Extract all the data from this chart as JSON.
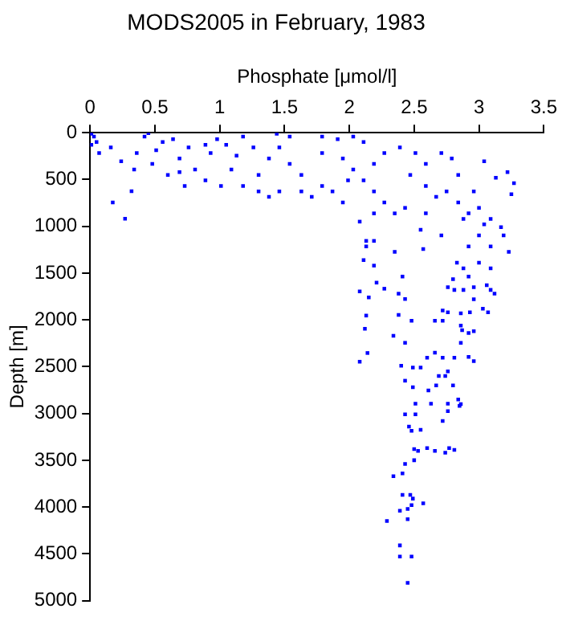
{
  "chart_data": {
    "type": "scatter",
    "title": "MODS2005 in February, 1983",
    "xlabel": "Phosphate [μmol/l]",
    "ylabel": "Depth [m]",
    "xlim": [
      0,
      3.5
    ],
    "xticks": [
      0,
      0.5,
      1,
      1.5,
      2,
      2.5,
      3,
      3.5
    ],
    "ylim": [
      5000,
      0
    ],
    "yticks": [
      0,
      500,
      1000,
      1500,
      2000,
      2500,
      3000,
      3500,
      4000,
      4500,
      5000
    ],
    "grid": false,
    "legend": false,
    "marker": "square",
    "series": [
      {
        "color": "#0000ff",
        "x": [
          2.08,
          2.15,
          2.13,
          2.12,
          2.14,
          2.08,
          2.21,
          2.27,
          2.38,
          2.43,
          2.38,
          2.34,
          2.43,
          2.4,
          2.43,
          2.49,
          2.49,
          2.55,
          2.6,
          2.66,
          2.72,
          2.67,
          2.61,
          2.63,
          2.51,
          2.43,
          2.51,
          2.46,
          2.48,
          2.55,
          2.72,
          2.76,
          2.84,
          2.85,
          2.76,
          2.86,
          2.5,
          2.53,
          2.6,
          2.66,
          2.74,
          2.77,
          2.81,
          2.5,
          2.43,
          2.34,
          2.41,
          2.41,
          2.47,
          2.49,
          2.57,
          2.48,
          2.45,
          2.39,
          2.45,
          2.29,
          2.39,
          2.39,
          2.48,
          2.45,
          2.76,
          2.81,
          2.88,
          2.96,
          3.06,
          3.09,
          3.12,
          2.96,
          3.03,
          3.07,
          2.93,
          2.86,
          2.76,
          2.72,
          2.72,
          2.66,
          2.48,
          2.86,
          2.87,
          2.92,
          2.96,
          2.86,
          2.92,
          2.96,
          2.81,
          2.76,
          2.69,
          2.74,
          2.8,
          0.175,
          0.27,
          0.32,
          0.03,
          0.16,
          0.07,
          0.36,
          0.56,
          0.69,
          0.48,
          0.34,
          0.24,
          0.01,
          0.64,
          0.6,
          0.69,
          0.81,
          0.89,
          1.01,
          0.73,
          1.09,
          0.93,
          1.05,
          1.18,
          1.26,
          1.13,
          1.38,
          1.46,
          1.3,
          1.18,
          1.3,
          1.38,
          1.54,
          1.63,
          1.46,
          1.71,
          1.79,
          1.87,
          1.99,
          1.95,
          1.63,
          1.44,
          1.54,
          1.79,
          1.91,
          2.03,
          2.11,
          1.79,
          1.95,
          2.03,
          2.11,
          2.19,
          2.27,
          2.35,
          2.19,
          2.27,
          2.39,
          2.51,
          2.59,
          2.47,
          2.59,
          2.67,
          2.75,
          2.84,
          2.92,
          3.0,
          3.04,
          3.22,
          3.27,
          3.25,
          3.13,
          2.71,
          2.79,
          2.84,
          2.96,
          3.04,
          3.09,
          3.17,
          3.0,
          2.92,
          3.09,
          3.19,
          3.23,
          3.0,
          2.88,
          3.09,
          2.83,
          2.57,
          2.35,
          2.13,
          2.13,
          2.11,
          2.19,
          2.41,
          2.19,
          2.08,
          2.8,
          2.92,
          2.59,
          2.43,
          2.19,
          2.55,
          2.71,
          2.88,
          0.01,
          0.05,
          0.42,
          0.51,
          0.76,
          0.89,
          0.98,
          0.45
        ],
        "values": [
          1696,
          1760,
          1954,
          2095,
          2354,
          2447,
          1602,
          1667,
          1720,
          1777,
          1947,
          2170,
          2245,
          2490,
          2650,
          2720,
          2510,
          2510,
          2405,
          2350,
          2405,
          2700,
          2755,
          2895,
          2895,
          3010,
          3010,
          3140,
          3185,
          3175,
          3080,
          2895,
          2850,
          2920,
          2975,
          2900,
          3380,
          3400,
          3370,
          3400,
          3420,
          3370,
          3390,
          3500,
          3540,
          3670,
          3640,
          3870,
          3870,
          3910,
          3960,
          3980,
          4020,
          4040,
          4130,
          4150,
          4410,
          4530,
          4530,
          4810,
          1650,
          1680,
          1680,
          1650,
          1630,
          1680,
          1720,
          1780,
          1880,
          1920,
          1920,
          1930,
          1920,
          1900,
          2010,
          2010,
          2010,
          2060,
          2110,
          2140,
          2120,
          2245,
          2395,
          2440,
          2405,
          2550,
          2600,
          2600,
          2700,
          745,
          920,
          625,
          41,
          158,
          217,
          217,
          100,
          275,
          334,
          393,
          305,
          12,
          70,
          452,
          422,
          393,
          510,
          570,
          570,
          393,
          217,
          129,
          41,
          158,
          246,
          275,
          158,
          452,
          570,
          628,
          686,
          334,
          452,
          628,
          686,
          570,
          628,
          510,
          745,
          628,
          12,
          41,
          41,
          70,
          41,
          100,
          217,
          275,
          393,
          510,
          628,
          745,
          862,
          334,
          217,
          158,
          217,
          334,
          452,
          570,
          686,
          628,
          745,
          862,
          803,
          305,
          422,
          540,
          657,
          481,
          217,
          275,
          452,
          628,
          980,
          921,
          1009,
          1097,
          1215,
          1215,
          1097,
          1273,
          1390,
          1449,
          1449,
          1390,
          1244,
          1273,
          1156,
          1215,
          1361,
          1420,
          1537,
          1156,
          950,
          1566,
          1537,
          862,
          803,
          862,
          1038,
          1097,
          921,
          129,
          100,
          41,
          188,
          158,
          129,
          70,
          5
        ]
      }
    ]
  }
}
